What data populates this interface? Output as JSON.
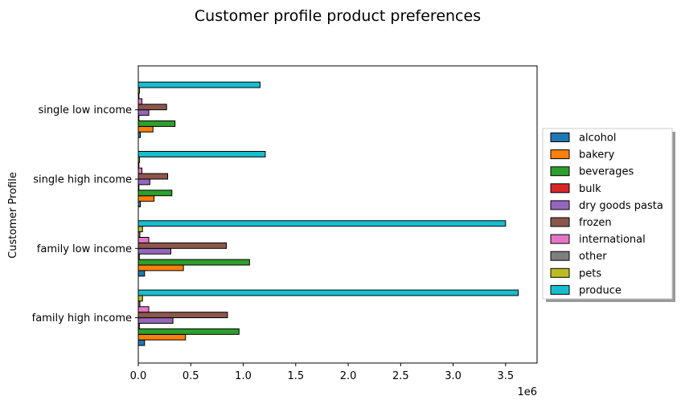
{
  "chart_data": {
    "type": "bar",
    "orientation": "horizontal",
    "title": "Customer profile product preferences",
    "xlabel": "",
    "ylabel": "Customer Profile",
    "x_offset_label": "1e6",
    "xlim": [
      0,
      3.8
    ],
    "xticks": [
      "0.0",
      "0.5",
      "1.0",
      "1.5",
      "2.0",
      "2.5",
      "3.0",
      "3.5"
    ],
    "categories": [
      "family high income",
      "family low income",
      "single high income",
      "single low income"
    ],
    "legend_position": "center-right outside",
    "grid": false,
    "series": [
      {
        "name": "alcohol",
        "color": "#1f77b4",
        "values": [
          0.06,
          0.06,
          0.02,
          0.02
        ]
      },
      {
        "name": "bakery",
        "color": "#ff7f0e",
        "values": [
          0.45,
          0.43,
          0.15,
          0.14
        ]
      },
      {
        "name": "beverages",
        "color": "#2ca02c",
        "values": [
          0.96,
          1.06,
          0.32,
          0.35
        ]
      },
      {
        "name": "bulk",
        "color": "#d62728",
        "values": [
          0.01,
          0.01,
          0.005,
          0.005
        ]
      },
      {
        "name": "dry goods pasta",
        "color": "#9467bd",
        "values": [
          0.33,
          0.31,
          0.11,
          0.1
        ]
      },
      {
        "name": "frozen",
        "color": "#8c564b",
        "values": [
          0.85,
          0.84,
          0.28,
          0.27
        ]
      },
      {
        "name": "international",
        "color": "#e377c2",
        "values": [
          0.1,
          0.1,
          0.035,
          0.035
        ]
      },
      {
        "name": "other",
        "color": "#7f7f7f",
        "values": [
          0.015,
          0.015,
          0.005,
          0.005
        ]
      },
      {
        "name": "pets",
        "color": "#bcbd22",
        "values": [
          0.04,
          0.04,
          0.012,
          0.012
        ]
      },
      {
        "name": "produce",
        "color": "#17becf",
        "values": [
          3.62,
          3.5,
          1.21,
          1.16
        ]
      }
    ]
  }
}
